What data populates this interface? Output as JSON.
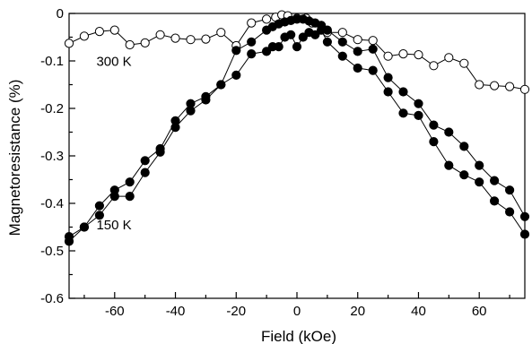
{
  "chart_data": {
    "type": "scatter",
    "title": "",
    "xlabel": "Field (kOe)",
    "ylabel": "Magnetoresistance (%)",
    "xlim": [
      -75,
      75
    ],
    "ylim": [
      -0.6,
      0
    ],
    "x_ticks": [
      -60,
      -40,
      -20,
      0,
      20,
      40,
      60
    ],
    "x_tick_labels": [
      "-60",
      "-40",
      "-20",
      "0",
      "20",
      "40",
      "60"
    ],
    "y_ticks": [
      0,
      -0.1,
      -0.2,
      -0.3,
      -0.4,
      -0.5,
      -0.6
    ],
    "y_tick_labels": [
      "0",
      "-0.1",
      "-0.2",
      "-0.3",
      "-0.4",
      "-0.5",
      "-0.6"
    ],
    "grid": false,
    "annotations": [
      {
        "text": "300 K",
        "x": -66,
        "y": -0.11
      },
      {
        "text": "150 K",
        "x": -66,
        "y": -0.455
      }
    ],
    "series": [
      {
        "marker": "open-circle",
        "x": [
          -75,
          -70,
          -65,
          -60,
          -55,
          -50,
          -45,
          -40,
          -35,
          -30,
          -25,
          -20,
          -15,
          -10,
          -7,
          -5,
          -3,
          0,
          3,
          5,
          8,
          10,
          15,
          20,
          25,
          30,
          35,
          40,
          45,
          50,
          55,
          60,
          65,
          70,
          75
        ],
        "y": [
          -0.063,
          -0.048,
          -0.038,
          -0.035,
          -0.066,
          -0.062,
          -0.045,
          -0.052,
          -0.055,
          -0.054,
          -0.04,
          -0.068,
          -0.02,
          -0.012,
          -0.008,
          -0.003,
          -0.005,
          -0.01,
          -0.01,
          -0.02,
          -0.025,
          -0.04,
          -0.04,
          -0.055,
          -0.057,
          -0.09,
          -0.085,
          -0.087,
          -0.11,
          -0.093,
          -0.105,
          -0.15,
          -0.152,
          -0.154,
          -0.16
        ]
      },
      {
        "marker": "filled-circle",
        "x": [
          -75,
          -70,
          -65,
          -60,
          -55,
          -50,
          -45,
          -40,
          -35,
          -30,
          -25,
          -20,
          -15,
          -10,
          -8,
          -6,
          -4,
          -2,
          0,
          2,
          4,
          6,
          8,
          10,
          15,
          20,
          25,
          30,
          35,
          40,
          45,
          50,
          55,
          60,
          65,
          70,
          75
        ],
        "y": [
          -0.47,
          -0.45,
          -0.405,
          -0.372,
          -0.355,
          -0.31,
          -0.285,
          -0.226,
          -0.19,
          -0.175,
          -0.15,
          -0.078,
          -0.06,
          -0.035,
          -0.028,
          -0.022,
          -0.018,
          -0.015,
          -0.012,
          -0.012,
          -0.016,
          -0.02,
          -0.025,
          -0.035,
          -0.06,
          -0.08,
          -0.075,
          -0.135,
          -0.165,
          -0.19,
          -0.235,
          -0.25,
          -0.28,
          -0.32,
          -0.352,
          -0.372,
          -0.428
        ]
      },
      {
        "marker": "filled-circle",
        "x": [
          -75,
          -70,
          -65,
          -60,
          -55,
          -50,
          -45,
          -40,
          -35,
          -30,
          -25,
          -20,
          -15,
          -10,
          -8,
          -6,
          -4,
          -2,
          0,
          2,
          4,
          6,
          8,
          10,
          15,
          20,
          25,
          30,
          35,
          40,
          45,
          50,
          55,
          60,
          65,
          70,
          75
        ],
        "y": [
          -0.48,
          -0.45,
          -0.425,
          -0.385,
          -0.385,
          -0.335,
          -0.292,
          -0.24,
          -0.205,
          -0.182,
          -0.15,
          -0.13,
          -0.085,
          -0.08,
          -0.07,
          -0.07,
          -0.05,
          -0.045,
          -0.07,
          -0.05,
          -0.04,
          -0.045,
          -0.035,
          -0.06,
          -0.09,
          -0.115,
          -0.12,
          -0.165,
          -0.21,
          -0.215,
          -0.27,
          -0.32,
          -0.34,
          -0.355,
          -0.395,
          -0.418,
          -0.465
        ]
      }
    ]
  }
}
